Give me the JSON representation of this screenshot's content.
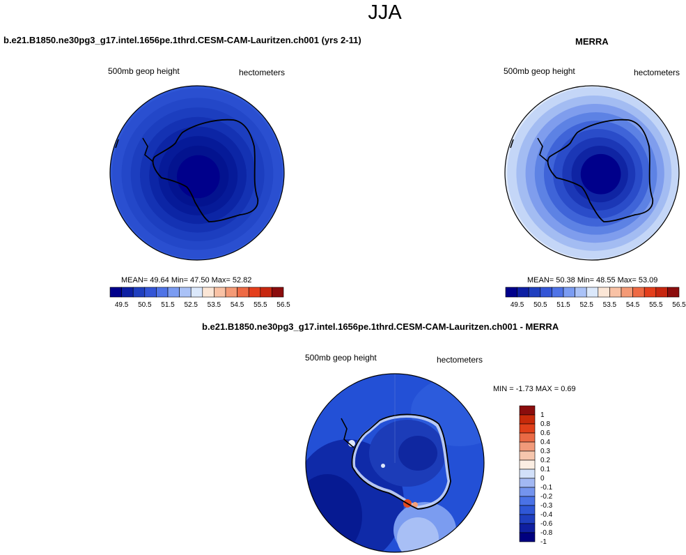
{
  "page": {
    "title": "JJA",
    "diff_title": "b.e21.B1850.ne30pg3_g17.intel.1656pe.1thrd.CESM-CAM-Lauritzen.ch001 - MERRA"
  },
  "panels": [
    {
      "id": "model",
      "title": "b.e21.B1850.ne30pg3_g17.intel.1656pe.1thrd.CESM-CAM-Lauritzen.ch001 (yrs 2-11)",
      "variable": "500mb geop height",
      "units": "hectometers",
      "stats": "MEAN=  49.64  Min=  47.50  Max=  52.82"
    },
    {
      "id": "obs",
      "title": "MERRA",
      "variable": "500mb geop height",
      "units": "hectometers",
      "stats": "MEAN=  50.38  Min=  48.55  Max=  53.09"
    }
  ],
  "colorbar": {
    "colors": [
      "#00008b",
      "#0d1fa3",
      "#1f3fbf",
      "#3355d6",
      "#4f73e6",
      "#7b9cf2",
      "#aac2f7",
      "#dbe8fb",
      "#fbe6d6",
      "#f9c2a5",
      "#f49a76",
      "#ee6a44",
      "#e43f1c",
      "#c72710",
      "#8b0d0d"
    ],
    "tick_labels": [
      "49.5",
      "50.5",
      "51.5",
      "52.5",
      "53.5",
      "54.5",
      "55.5",
      "56.5"
    ]
  },
  "diff": {
    "variable": "500mb geop height",
    "units": "hectometers",
    "minmax": "MIN =  -1.73 MAX =   0.69",
    "colors": [
      "#00007f",
      "#0f1fa0",
      "#1f3fbf",
      "#2f57d6",
      "#4a72e6",
      "#7494ee",
      "#a2b8f3",
      "#d2e0f9",
      "#fbeee3",
      "#f6c6ad",
      "#f19a7a",
      "#ea6a45",
      "#e0401a",
      "#c72a0a",
      "#8b0d0d"
    ],
    "tick_labels": [
      "1",
      "0.8",
      "0.6",
      "0.4",
      "0.3",
      "0.2",
      "0.1",
      "0",
      "-0.1",
      "-0.2",
      "-0.3",
      "-0.4",
      "-0.6",
      "-0.8",
      "-1"
    ]
  },
  "fields": {
    "model_rings": [
      "#2f57d6",
      "#2a4fd0",
      "#2347c8",
      "#1c3ebf",
      "#1432b3",
      "#0c25a5",
      "#061a98",
      "#03138f",
      "#00008b"
    ],
    "obs_rings": [
      "#dfe9fb",
      "#c4d6f7",
      "#a3bcf2",
      "#7f9ded",
      "#5d82e4",
      "#3f64d8",
      "#2a4cc9",
      "#1b37b6",
      "#0f24a3",
      "#00008b"
    ],
    "diff_base": "#2350d6"
  }
}
